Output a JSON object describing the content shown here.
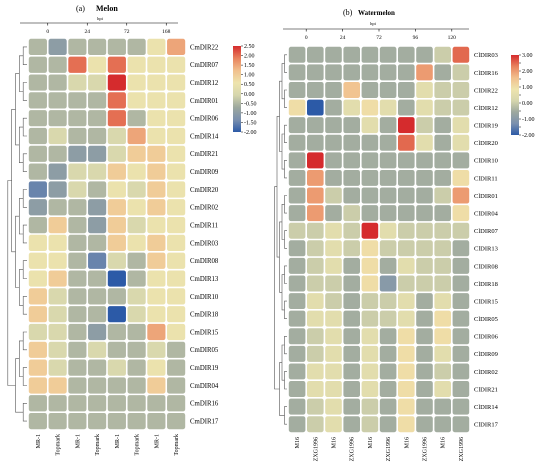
{
  "colors": {
    "palette": [
      "#2c5aa7",
      "#7a90ae",
      "#9da89e",
      "#d6d6ad",
      "#eee4ad",
      "#f1c08e",
      "#e8835e",
      "#d52b2d"
    ],
    "low": "#2c5aa7",
    "mid": "#eee4ad",
    "high": "#d52b2d"
  },
  "chart_data": [
    {
      "type": "heatmap",
      "panel_label": "(a)",
      "title": "Melon",
      "unit_label": "hpi",
      "timepoints": [
        "0",
        "24",
        "72",
        "168"
      ],
      "columns": [
        "MR-1",
        "Topmark",
        "MR-1",
        "Topmark",
        "MR-1",
        "Topmark",
        "MR-1",
        "Topmark"
      ],
      "rows": [
        "CmDIR22",
        "CmDIR07",
        "CmDIR12",
        "CmDIR01",
        "CmDIR06",
        "CmDIR14",
        "CmDIR21",
        "CmDIR09",
        "CmDIR20",
        "CmDIR02",
        "CmDIR11",
        "CmDIR03",
        "CmDIR08",
        "CmDIR13",
        "CmDIR10",
        "CmDIR18",
        "CmDIR15",
        "CmDIR05",
        "CmDIR19",
        "CmDIR04",
        "CmDIR16",
        "CmDIR17"
      ],
      "values": [
        [
          -0.5,
          -1.0,
          -0.5,
          -0.5,
          -0.5,
          -0.5,
          0.5,
          1.5
        ],
        [
          -0.5,
          -0.5,
          2.0,
          0.5,
          2.0,
          0.5,
          0.5,
          0.5
        ],
        [
          -0.5,
          -0.5,
          0.0,
          0.0,
          2.5,
          0.5,
          0.5,
          0.5
        ],
        [
          -0.5,
          -0.5,
          -0.5,
          -0.5,
          2.0,
          0.5,
          0.5,
          0.5
        ],
        [
          -0.5,
          -0.5,
          -0.5,
          -0.5,
          2.0,
          -0.5,
          0.5,
          0.5
        ],
        [
          -0.5,
          0.0,
          -0.5,
          -0.5,
          0.0,
          1.5,
          0.5,
          0.5
        ],
        [
          -0.5,
          -0.5,
          -1.0,
          -1.0,
          0.0,
          1.0,
          1.0,
          0.5
        ],
        [
          -0.5,
          -1.0,
          0.0,
          0.0,
          1.0,
          0.5,
          1.0,
          0.5
        ],
        [
          -1.5,
          -1.0,
          0.0,
          -0.5,
          0.5,
          0.0,
          1.0,
          0.5
        ],
        [
          -1.0,
          -0.5,
          -0.5,
          -1.0,
          1.0,
          0.5,
          1.0,
          0.5
        ],
        [
          -0.5,
          1.0,
          -0.5,
          -1.0,
          1.0,
          0.0,
          0.5,
          0.5
        ],
        [
          0.5,
          0.5,
          -0.5,
          -0.5,
          1.0,
          0.5,
          1.0,
          0.5
        ],
        [
          0.5,
          0.5,
          -0.5,
          -1.5,
          0.0,
          -0.5,
          1.0,
          0.5
        ],
        [
          0.5,
          1.0,
          -0.5,
          -0.5,
          -2.0,
          -0.5,
          0.5,
          0.5
        ],
        [
          1.0,
          0.0,
          -0.5,
          -0.5,
          -0.5,
          0.0,
          0.5,
          0.5
        ],
        [
          1.0,
          0.0,
          -0.5,
          -0.5,
          -2.0,
          0.0,
          0.5,
          0.5
        ],
        [
          0.0,
          0.0,
          -0.5,
          -1.0,
          -0.5,
          -0.5,
          1.5,
          0.5
        ],
        [
          1.0,
          0.0,
          -0.5,
          0.0,
          -0.5,
          -0.5,
          0.0,
          -0.5
        ],
        [
          1.0,
          0.0,
          -0.5,
          -0.5,
          0.0,
          -0.5,
          0.5,
          -0.5
        ],
        [
          1.0,
          1.0,
          -0.5,
          -0.5,
          -0.5,
          -0.5,
          1.0,
          -0.5
        ],
        [
          -0.5,
          -0.5,
          -0.5,
          -0.5,
          -0.5,
          -0.5,
          -0.5,
          -0.5
        ],
        [
          -0.5,
          -0.5,
          -0.5,
          -0.5,
          -0.5,
          -0.5,
          -0.5,
          -0.5
        ]
      ],
      "legend": {
        "ticks": [
          2.5,
          2.0,
          1.5,
          1.0,
          0.5,
          0.0,
          -0.5,
          -1.0,
          -1.5,
          -2.0
        ],
        "tick_labels": [
          "2.50",
          "2.00",
          "1.50",
          "1.00",
          "0.50",
          "0.00",
          "-0.50",
          "-1.00",
          "-1.50",
          "-2.00"
        ],
        "range": [
          -2.0,
          2.5
        ],
        "placement": "right"
      }
    },
    {
      "type": "heatmap",
      "panel_label": "(b)",
      "title": "Watermelon",
      "unit_label": "hpi",
      "timepoints": [
        "0",
        "24",
        "72",
        "96",
        "120"
      ],
      "columns": [
        "M16",
        "ZXG1996",
        "M16",
        "ZXG1996",
        "M16",
        "ZXG1996",
        "M16",
        "ZXG1996",
        "M16",
        "ZXG1996"
      ],
      "rows": [
        "ClDIR03",
        "ClDIR16",
        "ClDIR22",
        "ClDIR12",
        "ClDIR19",
        "ClDIR20",
        "ClDIR10",
        "ClDIR11",
        "ClDIR01",
        "ClDIR04",
        "ClDIR07",
        "ClDIR13",
        "ClDIR08",
        "ClDIR18",
        "ClDIR15",
        "ClDIR05",
        "ClDIR06",
        "ClDIR09",
        "ClDIR02",
        "ClDIR21",
        "ClDIR14",
        "ClDIR17"
      ],
      "values": [
        [
          -0.5,
          -0.5,
          -0.5,
          -0.5,
          -0.5,
          -0.5,
          -0.5,
          -0.5,
          0.0,
          2.5
        ],
        [
          -0.5,
          -0.5,
          -0.5,
          -0.5,
          -0.5,
          -0.5,
          -0.5,
          2.0,
          -0.5,
          0.0
        ],
        [
          -0.5,
          -0.5,
          -0.5,
          1.5,
          -0.5,
          -0.5,
          -0.5,
          0.5,
          0.0,
          0.0
        ],
        [
          1.0,
          -2.0,
          -0.5,
          0.5,
          1.0,
          0.5,
          -0.5,
          0.5,
          0.0,
          0.0
        ],
        [
          -0.5,
          -0.5,
          -0.5,
          -0.5,
          0.5,
          -0.5,
          3.0,
          0.0,
          -0.5,
          0.5
        ],
        [
          -0.5,
          -0.5,
          -0.5,
          -0.5,
          -0.5,
          -0.5,
          2.5,
          0.5,
          -0.5,
          0.5
        ],
        [
          -0.5,
          3.0,
          -0.5,
          -0.5,
          -0.5,
          -0.5,
          -0.5,
          -0.5,
          -0.5,
          -0.5
        ],
        [
          -0.5,
          2.0,
          -0.5,
          -0.5,
          -0.5,
          -0.5,
          -0.5,
          -0.5,
          -0.5,
          1.0
        ],
        [
          -0.5,
          2.0,
          0.0,
          -0.5,
          -0.5,
          -0.5,
          -0.5,
          -0.5,
          0.0,
          2.0
        ],
        [
          -0.5,
          2.0,
          -0.5,
          0.0,
          -0.5,
          -0.5,
          -0.5,
          -0.5,
          -0.5,
          1.0
        ],
        [
          0.0,
          0.0,
          0.5,
          0.0,
          3.0,
          0.5,
          0.0,
          0.0,
          0.0,
          0.0
        ],
        [
          -0.5,
          0.0,
          0.5,
          0.0,
          1.0,
          0.0,
          0.0,
          0.0,
          0.0,
          -0.5
        ],
        [
          -0.5,
          0.0,
          0.5,
          -0.5,
          1.0,
          -0.5,
          0.5,
          0.0,
          0.0,
          -0.5
        ],
        [
          -0.5,
          0.0,
          0.0,
          -0.5,
          1.0,
          -1.0,
          0.0,
          0.0,
          0.0,
          -0.5
        ],
        [
          -0.5,
          0.5,
          0.0,
          -0.5,
          0.0,
          0.0,
          0.5,
          -0.5,
          0.5,
          -0.5
        ],
        [
          -0.5,
          0.5,
          0.5,
          -0.5,
          0.0,
          0.0,
          0.5,
          -0.5,
          1.0,
          -0.5
        ],
        [
          -0.5,
          0.0,
          0.5,
          -0.5,
          0.5,
          -0.5,
          1.0,
          -0.5,
          1.0,
          -0.5
        ],
        [
          -0.5,
          0.0,
          0.5,
          -0.5,
          0.5,
          -0.5,
          1.0,
          -0.5,
          0.5,
          -0.5
        ],
        [
          -0.5,
          0.5,
          0.5,
          -0.5,
          0.5,
          -0.5,
          1.0,
          -0.5,
          0.0,
          -0.5
        ],
        [
          -0.5,
          0.5,
          0.5,
          -0.5,
          0.5,
          -0.5,
          1.0,
          -0.5,
          0.5,
          -0.5
        ],
        [
          -0.5,
          0.0,
          0.5,
          -0.5,
          0.0,
          -0.5,
          1.0,
          -0.5,
          -0.5,
          -0.5
        ],
        [
          -0.5,
          0.0,
          0.5,
          -0.5,
          0.0,
          -0.5,
          1.0,
          -0.5,
          -0.5,
          -0.5
        ]
      ],
      "legend": {
        "ticks": [
          3.0,
          2.5,
          2.0,
          1.5,
          1.0,
          0.5,
          0.0,
          -0.5,
          -1.0,
          -1.5,
          -2.0
        ],
        "tick_labels": [
          "3.00",
          "",
          "2.00",
          "",
          "1.00",
          "",
          "0.00",
          "",
          "-1.00",
          "",
          "-2.00"
        ],
        "range": [
          -2.0,
          3.0
        ],
        "placement": "right"
      }
    }
  ]
}
